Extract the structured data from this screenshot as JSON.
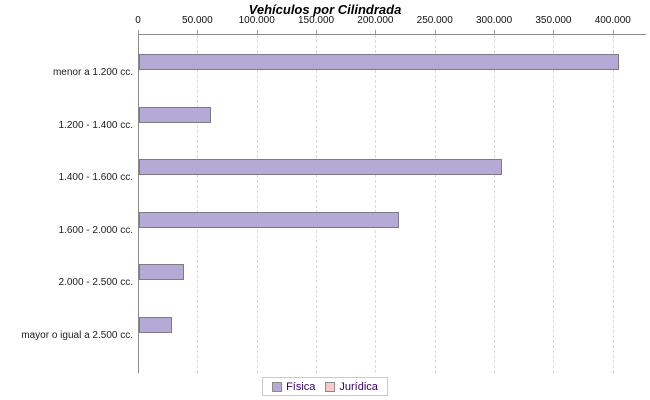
{
  "chart_data": {
    "type": "bar",
    "orientation": "horizontal",
    "title": "Vehículos por Cilindrada",
    "categories": [
      "menor a 1.200 cc.",
      "1.200 - 1.400 cc.",
      "1.400 - 1.600 cc.",
      "1.600 - 2.000 cc.",
      "2.000 - 2.500 cc.",
      "mayor o igual a 2.500 cc."
    ],
    "series": [
      {
        "name": "Física",
        "color": "#b5aad6",
        "values": [
          404000,
          61000,
          306000,
          219000,
          38000,
          28000
        ]
      },
      {
        "name": "Jurídica",
        "color": "#f9cacd",
        "values": [
          0,
          0,
          0,
          0,
          0,
          0
        ]
      }
    ],
    "x_axis": {
      "ticks": [
        0,
        50000,
        100000,
        150000,
        200000,
        250000,
        300000,
        350000,
        400000
      ],
      "tick_labels": [
        "0",
        "50.000",
        "100.000",
        "150.000",
        "200.000",
        "250.000",
        "300.000",
        "350.000",
        "400.000"
      ],
      "xlim": [
        0,
        428000
      ],
      "grid": "dashed"
    },
    "legend": {
      "position": "bottom",
      "entries": [
        "Física",
        "Jurídica"
      ]
    }
  },
  "colors": {
    "fisica_bar": "#b5aad6",
    "juridica_bar": "#f9cacd",
    "bar_border": "#7d7a85",
    "axis_line": "#8a8a8a",
    "gridline": "#dadada",
    "legend_text": "#330066"
  }
}
